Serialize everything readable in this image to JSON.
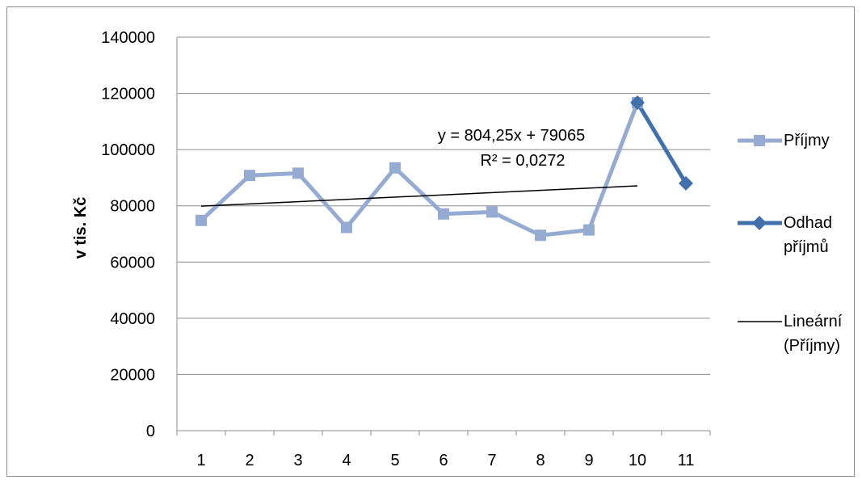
{
  "chart_data": {
    "type": "line",
    "title": "",
    "xlabel": "",
    "ylabel": "v tis. Kč",
    "categories": [
      "1",
      "2",
      "3",
      "4",
      "5",
      "6",
      "7",
      "8",
      "9",
      "10",
      "11"
    ],
    "ylim": [
      0,
      140000
    ],
    "yticks": [
      0,
      20000,
      40000,
      60000,
      80000,
      100000,
      120000,
      140000
    ],
    "grid": true,
    "legend_position": "right",
    "series": [
      {
        "name": "Příjmy",
        "color": "#95abd2",
        "marker": "square",
        "points": [
          {
            "x": 1,
            "y": 74800
          },
          {
            "x": 2,
            "y": 90800
          },
          {
            "x": 3,
            "y": 91600
          },
          {
            "x": 4,
            "y": 72300
          },
          {
            "x": 5,
            "y": 93500
          },
          {
            "x": 6,
            "y": 77100
          },
          {
            "x": 7,
            "y": 77800
          },
          {
            "x": 8,
            "y": 69500
          },
          {
            "x": 9,
            "y": 71400
          },
          {
            "x": 10,
            "y": 116700
          }
        ]
      },
      {
        "name": "Odhad příjmů",
        "color": "#4170ac",
        "marker": "diamond",
        "points": [
          {
            "x": 10,
            "y": 116700
          },
          {
            "x": 11,
            "y": 88000
          }
        ]
      },
      {
        "name": "Lineární (Příjmy)",
        "color": "#000000",
        "marker": "none",
        "trendline": {
          "slope": 804.25,
          "intercept": 79065,
          "x_start": 1,
          "x_end": 10
        }
      }
    ],
    "legend": [
      {
        "lines": [
          "Příjmy"
        ],
        "series": 0
      },
      {
        "lines": [
          "Odhad",
          "příjmů"
        ],
        "series": 1
      },
      {
        "lines": [
          "Lineární",
          "(Příjmy)"
        ],
        "series": 2
      }
    ],
    "annotations": {
      "equation": "y = 804,25x + 79065",
      "r_squared": "R² = 0,0272"
    }
  }
}
